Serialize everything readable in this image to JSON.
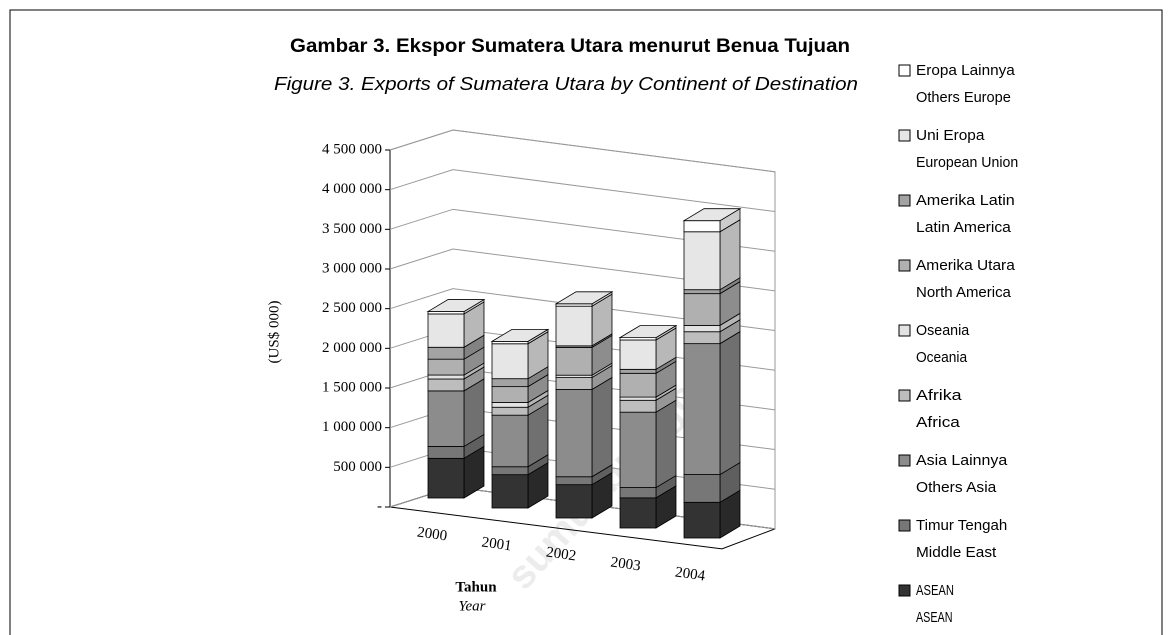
{
  "chart_data": {
    "type": "bar3d_stacked",
    "title": "Gambar 3. Ekspor Sumatera Utara menurut Benua Tujuan",
    "subtitle": "Figure 3. Exports of Sumatera Utara by Continent of Destination",
    "y_label": "(US$ 000)",
    "x_label": "Tahun",
    "x_label_en": "Year",
    "watermark": "sumut.bps.go.id",
    "categories": [
      "2000",
      "2001",
      "2002",
      "2003",
      "2004"
    ],
    "ylim": [
      0,
      4500000
    ],
    "yticks": [
      {
        "value": 0,
        "label": "-"
      },
      {
        "value": 500000,
        "label": "500 000"
      },
      {
        "value": 1000000,
        "label": "1 000 000"
      },
      {
        "value": 1500000,
        "label": "1 500 000"
      },
      {
        "value": 2000000,
        "label": "2 000 000"
      },
      {
        "value": 2500000,
        "label": "2 500 000"
      },
      {
        "value": 3000000,
        "label": "3 000 000"
      },
      {
        "value": 3500000,
        "label": "3 500 000"
      },
      {
        "value": 4000000,
        "label": "4 000 000"
      },
      {
        "value": 4500000,
        "label": "4 500 000"
      }
    ],
    "grid": true,
    "legend": "right",
    "series": [
      {
        "name": "ASEAN",
        "name_en": "ASEAN",
        "color": "#333333",
        "values": [
          500000,
          420000,
          420000,
          380000,
          450000
        ]
      },
      {
        "name": "Timur Tengah",
        "name_en": "Middle East",
        "color": "#777777",
        "values": [
          150000,
          100000,
          100000,
          130000,
          350000
        ]
      },
      {
        "name": "Asia Lainnya",
        "name_en": "Others Asia",
        "color": "#8c8c8c",
        "values": [
          700000,
          650000,
          1100000,
          950000,
          1650000
        ]
      },
      {
        "name": "Afrika",
        "name_en": "Africa",
        "color": "#bdbdbd",
        "values": [
          150000,
          100000,
          150000,
          150000,
          150000
        ]
      },
      {
        "name": "Oseania",
        "name_en": "Oceania",
        "color": "#e2e2e2",
        "values": [
          50000,
          60000,
          30000,
          40000,
          80000
        ]
      },
      {
        "name": "Amerika Utara",
        "name_en": "North America",
        "color": "#b0b0b0",
        "values": [
          200000,
          200000,
          350000,
          300000,
          400000
        ]
      },
      {
        "name": "Amerika Latin",
        "name_en": "Latin America",
        "color": "#a3a3a3",
        "values": [
          150000,
          100000,
          20000,
          50000,
          50000
        ]
      },
      {
        "name": "Uni Eropa",
        "name_en": "European Union",
        "color": "#e6e6e6",
        "values": [
          420000,
          440000,
          500000,
          370000,
          730000
        ]
      },
      {
        "name": "Eropa Lainnya",
        "name_en": "Others Europe",
        "color": "#ffffff",
        "values": [
          30000,
          30000,
          30000,
          30000,
          140000
        ]
      }
    ]
  }
}
